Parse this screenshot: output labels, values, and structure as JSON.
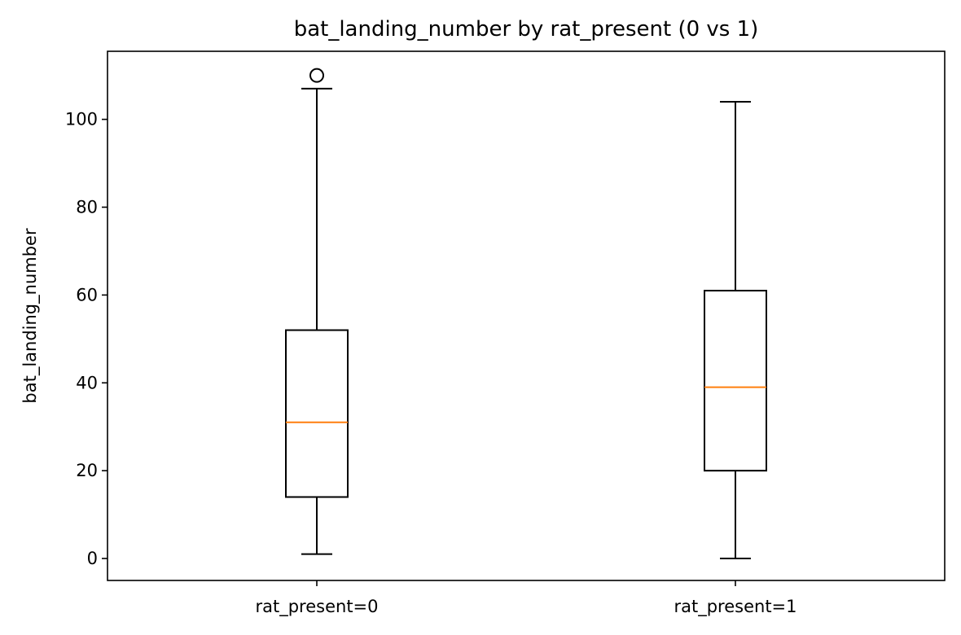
{
  "chart_data": {
    "type": "box",
    "title": "bat_landing_number by rat_present (0 vs 1)",
    "xlabel": "",
    "ylabel": "bat_landing_number",
    "ylim": [
      -5,
      115.5
    ],
    "yticks": [
      0,
      20,
      40,
      60,
      80,
      100
    ],
    "grid": false,
    "categories": [
      "rat_present=0",
      "rat_present=1"
    ],
    "boxes": [
      {
        "category": "rat_present=0",
        "whisker_low": 1,
        "q1": 14,
        "median": 31,
        "q3": 52,
        "whisker_high": 107,
        "outliers": [
          110
        ]
      },
      {
        "category": "rat_present=1",
        "whisker_low": 0,
        "q1": 20,
        "median": 39,
        "q3": 61,
        "whisker_high": 104,
        "outliers": []
      }
    ],
    "colors": {
      "box": "#000000",
      "median": "#ff7f0e",
      "outlier": "#000000"
    }
  }
}
